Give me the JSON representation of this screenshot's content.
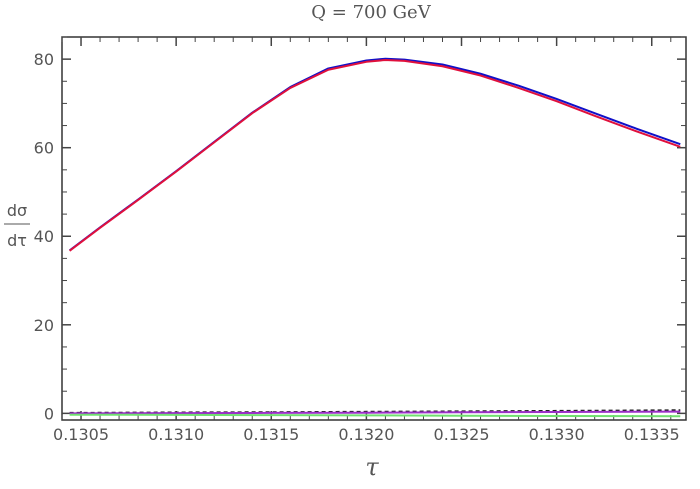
{
  "chart_data": {
    "type": "line",
    "title": "Q = 700 GeV",
    "xlabel": "τ",
    "ylabel": {
      "numerator": "dσ",
      "denominator": "dτ"
    },
    "xlim": [
      0.1304,
      0.13368
    ],
    "ylim": [
      -1.5,
      85
    ],
    "x_ticks": [
      0.1305,
      0.131,
      0.1315,
      0.132,
      0.1325,
      0.133,
      0.1335
    ],
    "x_tick_labels": [
      "0.1305",
      "0.1310",
      "0.1315",
      "0.1320",
      "0.1325",
      "0.1330",
      "0.1335"
    ],
    "y_ticks": [
      0,
      20,
      40,
      60,
      80
    ],
    "y_tick_labels": [
      "0",
      "20",
      "40",
      "60",
      "80"
    ],
    "grid": false,
    "series": [
      {
        "color": "#1010c8",
        "x": [
          0.13044,
          0.1306,
          0.1308,
          0.131,
          0.1312,
          0.1314,
          0.1316,
          0.1318,
          0.132,
          0.1321,
          0.1322,
          0.1324,
          0.1326,
          0.1328,
          0.133,
          0.1332,
          0.1334,
          0.13365
        ],
        "y": [
          36.8,
          42.0,
          48.3,
          54.7,
          61.3,
          67.9,
          73.7,
          77.9,
          79.7,
          80.1,
          79.9,
          78.8,
          76.7,
          74.0,
          71.0,
          67.8,
          64.6,
          60.8
        ]
      },
      {
        "color": "#e0103c",
        "x": [
          0.13044,
          0.1306,
          0.1308,
          0.131,
          0.1312,
          0.1314,
          0.1316,
          0.1318,
          0.132,
          0.1321,
          0.1322,
          0.1324,
          0.1326,
          0.1328,
          0.133,
          0.1332,
          0.1334,
          0.13365
        ],
        "y": [
          36.7,
          41.9,
          48.2,
          54.6,
          61.2,
          67.8,
          73.5,
          77.6,
          79.4,
          79.8,
          79.6,
          78.4,
          76.3,
          73.5,
          70.5,
          67.2,
          64.0,
          60.2
        ]
      },
      {
        "color": "#222222",
        "dashed": true,
        "x": [
          0.13044,
          0.131,
          0.1315,
          0.132,
          0.1325,
          0.133,
          0.13365
        ],
        "y": [
          0.1,
          0.2,
          0.25,
          0.35,
          0.45,
          0.55,
          0.7
        ]
      },
      {
        "color": "#9b30c8",
        "x": [
          0.13044,
          0.131,
          0.1315,
          0.132,
          0.1325,
          0.133,
          0.13365
        ],
        "y": [
          0.0,
          0.05,
          0.1,
          0.15,
          0.25,
          0.3,
          0.4
        ]
      },
      {
        "color": "#70e070",
        "x": [
          0.13044,
          0.131,
          0.1315,
          0.132,
          0.1325,
          0.133,
          0.13365
        ],
        "y": [
          -0.3,
          -0.35,
          -0.4,
          -0.45,
          -0.55,
          -0.6,
          -0.65
        ]
      }
    ]
  }
}
